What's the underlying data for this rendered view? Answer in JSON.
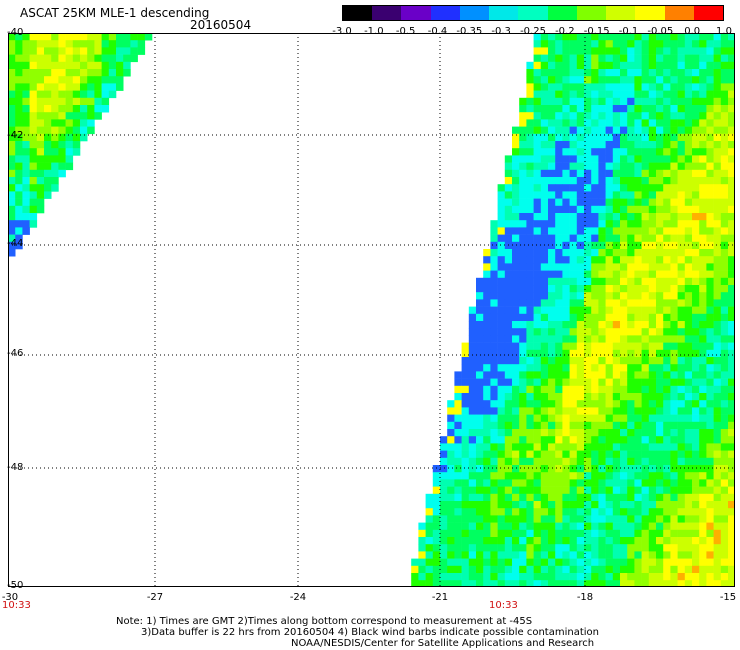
{
  "header": {
    "title": "ASCAT 25KM MLE-1 descending",
    "date": "20160504"
  },
  "colorbar": {
    "labels": [
      "-3.0",
      "-1.0",
      "-0.5",
      "-0.4",
      "-0.35",
      "-0.3",
      "-0.25",
      "-0.2",
      "-0.15",
      "-0.1",
      "-0.05",
      "0.0",
      "1.0"
    ],
    "colors": [
      "#000000",
      "#3a0070",
      "#6a00c8",
      "#2030ff",
      "#0090ff",
      "#00e8e8",
      "#00ffc0",
      "#00ff40",
      "#80ff00",
      "#d0ff00",
      "#ffff00",
      "#ff8000",
      "#ff0000"
    ]
  },
  "map": {
    "lon_labels": [
      "-30",
      "-27",
      "-24",
      "-21",
      "-18",
      "-15"
    ],
    "lat_labels": [
      "-40",
      "-42",
      "-44",
      "-46",
      "-48",
      "-50"
    ],
    "time_labels": [
      "10:33",
      "10:33"
    ],
    "lon_range": [
      -30,
      -15
    ],
    "lat_range": [
      -50,
      -40
    ],
    "gridlines": true
  },
  "notes": {
    "line1": "Note: 1) Times are GMT 2)Times along bottom correspond to measurement at -45S",
    "line2": "3)Data buffer is 22 hrs from 20160504 4) Black wind barbs indicate possible contamination",
    "line3": "NOAA/NESDIS/Center for Satellite Applications and Research"
  }
}
